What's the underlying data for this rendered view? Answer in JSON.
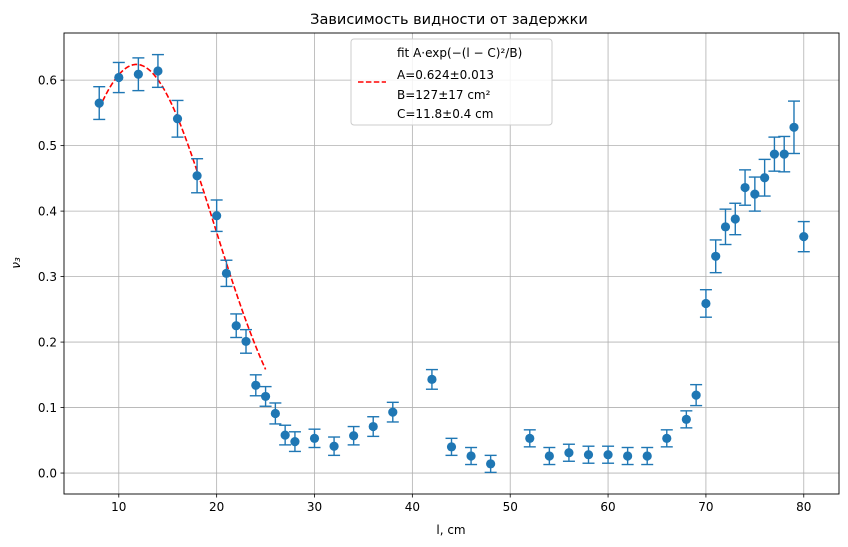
{
  "chart_data": {
    "type": "scatter",
    "title": "Зависимость видности от задержки",
    "xlabel": "l, cm",
    "ylabel": "ν₃",
    "xlim": [
      4.4,
      83.6
    ],
    "ylim": [
      -0.032,
      0.672
    ],
    "xticks": [
      10,
      20,
      30,
      40,
      50,
      60,
      70,
      80
    ],
    "yticks": [
      0.0,
      0.1,
      0.2,
      0.3,
      0.4,
      0.5,
      0.6
    ],
    "ytick_labels": [
      "0.0",
      "0.1",
      "0.2",
      "0.3",
      "0.4",
      "0.5",
      "0.6"
    ],
    "grid": true,
    "legend_position": "upper center",
    "colors": {
      "points": "#1f77b4",
      "fit": "#ff0000",
      "grid": "#b0b0b0"
    },
    "series": [
      {
        "kind": "errorbar",
        "x": [
          8,
          10,
          12,
          14,
          16,
          18,
          20,
          21,
          22,
          23,
          24,
          25,
          26,
          27,
          28,
          30,
          32,
          34,
          36,
          38,
          42,
          44,
          46,
          48,
          52,
          54,
          56,
          58,
          60,
          62,
          64,
          66,
          68,
          69,
          70,
          71,
          72,
          73,
          74,
          75,
          76,
          77,
          78,
          79,
          80
        ],
        "y": [
          0.565,
          0.604,
          0.609,
          0.614,
          0.541,
          0.454,
          0.393,
          0.305,
          0.225,
          0.201,
          0.134,
          0.117,
          0.091,
          0.058,
          0.048,
          0.053,
          0.041,
          0.057,
          0.071,
          0.093,
          0.143,
          0.04,
          0.026,
          0.014,
          0.053,
          0.026,
          0.031,
          0.028,
          0.028,
          0.026,
          0.026,
          0.053,
          0.082,
          0.119,
          0.259,
          0.331,
          0.376,
          0.388,
          0.436,
          0.426,
          0.451,
          0.487,
          0.487,
          0.528,
          0.361
        ],
        "yerr": [
          0.025,
          0.023,
          0.025,
          0.025,
          0.028,
          0.026,
          0.024,
          0.02,
          0.018,
          0.018,
          0.016,
          0.015,
          0.016,
          0.015,
          0.015,
          0.014,
          0.014,
          0.014,
          0.015,
          0.015,
          0.015,
          0.013,
          0.013,
          0.013,
          0.013,
          0.013,
          0.013,
          0.013,
          0.013,
          0.013,
          0.013,
          0.013,
          0.013,
          0.016,
          0.021,
          0.025,
          0.027,
          0.024,
          0.027,
          0.026,
          0.028,
          0.026,
          0.027,
          0.04,
          0.023
        ]
      },
      {
        "kind": "fit-line",
        "name": "fit $A\\cdot\\exp(-(l-C)^2/B)$",
        "params": {
          "A": 0.624,
          "B": 127,
          "C": 11.8
        },
        "x_range": [
          8,
          25
        ]
      }
    ],
    "legend": {
      "entries": [
        {
          "text": "fit A·exp(−(l − C)²/B)",
          "kind": "fit-title"
        },
        {
          "text": "A=0.624±0.013",
          "kind": "fit-line"
        },
        {
          "text": "B=127±17 cm²",
          "kind": "text"
        },
        {
          "text": "C=11.8±0.4 cm",
          "kind": "text"
        }
      ]
    }
  }
}
